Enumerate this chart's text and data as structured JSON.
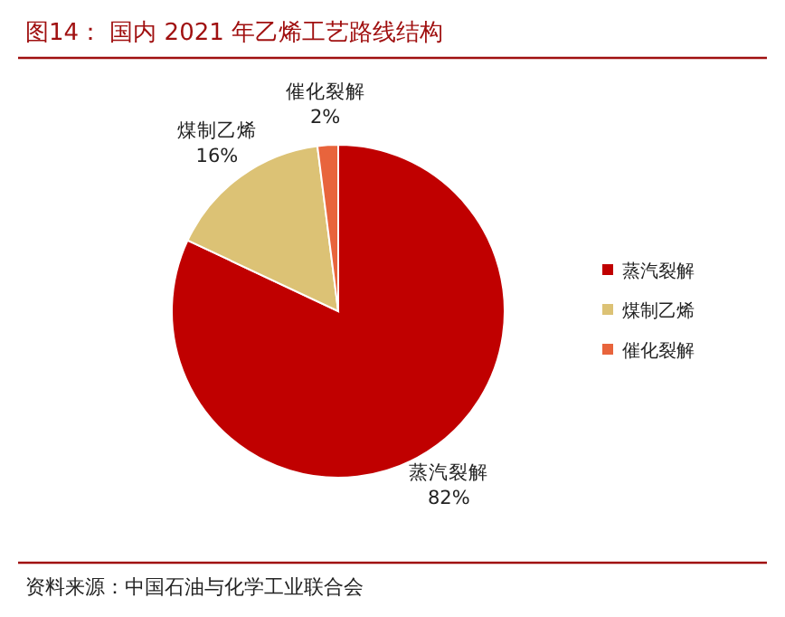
{
  "chart_data": {
    "type": "pie",
    "title": "图14： 国内 2021 年乙烯工艺路线结构",
    "categories": [
      "蒸汽裂解",
      "煤制乙烯",
      "催化裂解"
    ],
    "values": [
      82,
      16,
      2
    ],
    "colors": [
      "#c00000",
      "#dcc275",
      "#e8643c"
    ],
    "value_labels": [
      "82%",
      "16%",
      "2%"
    ],
    "legend": "right",
    "annotations": [
      "资料来源：中国石油与化学工业联合会"
    ]
  }
}
